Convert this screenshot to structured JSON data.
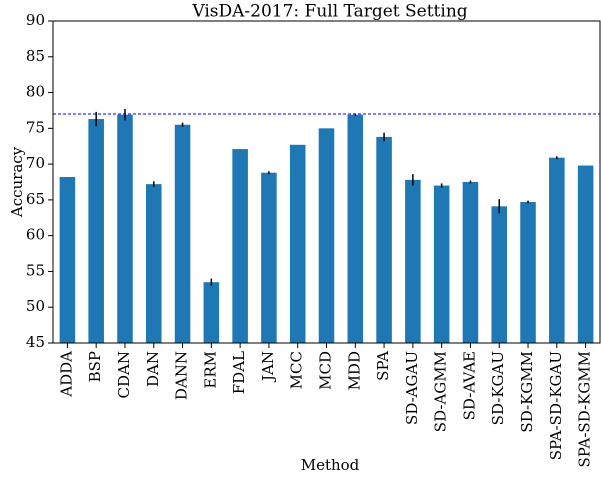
{
  "chart_data": {
    "type": "bar",
    "title": "VisDA-2017: Full Target Setting",
    "x_label": "Method",
    "y_label": "Accuracy",
    "categories": [
      "ADDA",
      "BSP",
      "CDAN",
      "DAN",
      "DANN",
      "ERM",
      "FDAL",
      "JAN",
      "MCC",
      "MCD",
      "MDD",
      "SPA",
      "SD-AGAU",
      "SD-AGMM",
      "SD-AVAE",
      "SD-KGAU",
      "SD-KGMM",
      "SPA-SD-KGAU",
      "SPA-SD-KGMM"
    ],
    "values": [
      68.2,
      76.3,
      76.9,
      67.2,
      75.5,
      53.5,
      72.1,
      68.8,
      72.7,
      75.0,
      76.9,
      73.8,
      67.8,
      67.0,
      67.5,
      64.1,
      64.7,
      70.9,
      69.8
    ],
    "errors": [
      null,
      1.0,
      0.8,
      0.4,
      0.3,
      0.5,
      null,
      0.2,
      null,
      null,
      0.2,
      0.6,
      0.8,
      0.3,
      0.2,
      1.0,
      0.2,
      0.2,
      null
    ],
    "color": "#1f77b4",
    "error_color": "#000000",
    "reference_line": 77.0,
    "reference_color": "#0000ff",
    "ylim": [
      45,
      90
    ],
    "yticks": [
      45,
      50,
      55,
      60,
      65,
      70,
      75,
      80,
      85,
      90
    ],
    "grid": false
  }
}
